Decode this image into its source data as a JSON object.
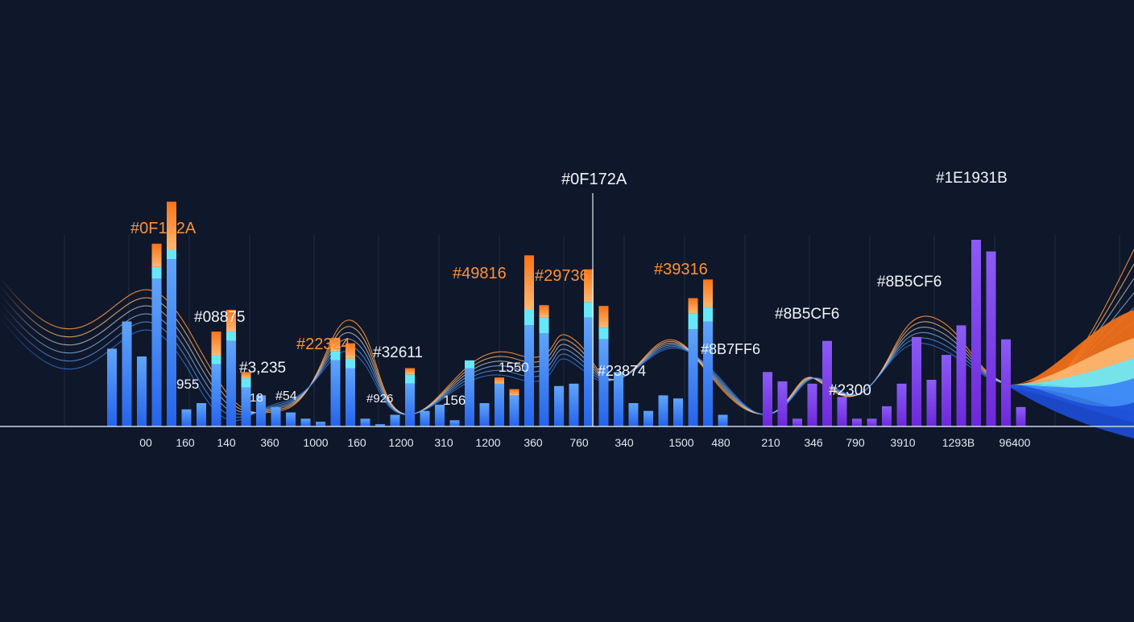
{
  "colors": {
    "background": "#0F172A",
    "blue": "#3B82F6",
    "cyan": "#67E8F9",
    "orange": "#FB923C",
    "purple": "#7C3AED",
    "label_orange": "#FB923C",
    "label_white": "#F1F5F9",
    "tick": "#E2E8F0"
  },
  "chart_data": {
    "type": "bar",
    "grid": true,
    "legend": "none",
    "ylim": [
      0,
      300
    ],
    "series": [
      {
        "name": "",
        "values": [
          100,
          135,
          90,
          190,
          215,
          22,
          30,
          80,
          110,
          50,
          40,
          25,
          18,
          10,
          6,
          85,
          75,
          10,
          3,
          15,
          55,
          20,
          28,
          8,
          75,
          30,
          55,
          40,
          130,
          120,
          52,
          55,
          140,
          112,
          70,
          30,
          20,
          40,
          36,
          125,
          135,
          15,
          0,
          0,
          70,
          58,
          10,
          55,
          110,
          38,
          10,
          10,
          26,
          55,
          115,
          60,
          92,
          130,
          240,
          225,
          112,
          25
        ],
        "stack_cyan": [
          0,
          0,
          0,
          15,
          12,
          0,
          0,
          12,
          12,
          12,
          0,
          0,
          0,
          0,
          0,
          12,
          12,
          0,
          0,
          0,
          12,
          0,
          0,
          0,
          10,
          0,
          0,
          0,
          20,
          20,
          0,
          0,
          20,
          15,
          0,
          0,
          0,
          0,
          0,
          20,
          18,
          0,
          0,
          0,
          0,
          0,
          0,
          0,
          0,
          0,
          0,
          0,
          0,
          0,
          0,
          0,
          0,
          0,
          0,
          0,
          0,
          0
        ],
        "stack_orange": [
          0,
          0,
          0,
          30,
          62,
          0,
          0,
          30,
          28,
          8,
          0,
          0,
          0,
          0,
          0,
          17,
          20,
          0,
          0,
          0,
          8,
          0,
          0,
          0,
          0,
          0,
          8,
          8,
          70,
          16,
          0,
          0,
          42,
          28,
          0,
          0,
          0,
          0,
          0,
          20,
          36,
          0,
          0,
          0,
          0,
          0,
          0,
          0,
          0,
          0,
          0,
          0,
          0,
          0,
          0,
          0,
          0,
          0,
          0,
          0,
          0,
          0
        ],
        "is_purple": [
          0,
          0,
          0,
          0,
          0,
          0,
          0,
          0,
          0,
          0,
          0,
          0,
          0,
          0,
          0,
          0,
          0,
          0,
          0,
          0,
          0,
          0,
          0,
          0,
          0,
          0,
          0,
          0,
          0,
          0,
          0,
          0,
          0,
          0,
          0,
          0,
          0,
          0,
          0,
          0,
          0,
          0,
          0,
          0,
          1,
          1,
          1,
          1,
          1,
          1,
          1,
          1,
          1,
          1,
          1,
          1,
          1,
          1,
          1,
          1,
          1,
          1
        ]
      }
    ],
    "x_tick_labels": [
      "00",
      "160",
      "140",
      "360",
      "1000",
      "160",
      "1200",
      "310",
      "1200",
      "360",
      "760",
      "340",
      "1500",
      "480",
      "210",
      "346",
      "790",
      "3910",
      "1293B",
      "96400"
    ],
    "annotations": [
      {
        "text": "#0F172A",
        "style": "orange"
      },
      {
        "text": "#08875",
        "style": "white"
      },
      {
        "text": "955",
        "style": "white"
      },
      {
        "text": "#3,235",
        "style": "white"
      },
      {
        "text": "18",
        "style": "white"
      },
      {
        "text": "#54",
        "style": "white"
      },
      {
        "text": "#22324",
        "style": "orange"
      },
      {
        "text": "#32611",
        "style": "white"
      },
      {
        "text": "#926",
        "style": "white"
      },
      {
        "text": "156",
        "style": "white"
      },
      {
        "text": "#49816",
        "style": "orange"
      },
      {
        "text": "1550",
        "style": "white"
      },
      {
        "text": "#29736",
        "style": "orange"
      },
      {
        "text": "#0F172A",
        "style": "white"
      },
      {
        "text": "#23874",
        "style": "white"
      },
      {
        "text": "#39316",
        "style": "orange"
      },
      {
        "text": "#8B7FF6",
        "style": "white"
      },
      {
        "text": "#8B5CF6",
        "style": "white"
      },
      {
        "text": "#2300",
        "style": "white"
      },
      {
        "text": "#8B5CF6",
        "style": "white"
      },
      {
        "text": "#1E1931B",
        "style": "white"
      }
    ]
  }
}
